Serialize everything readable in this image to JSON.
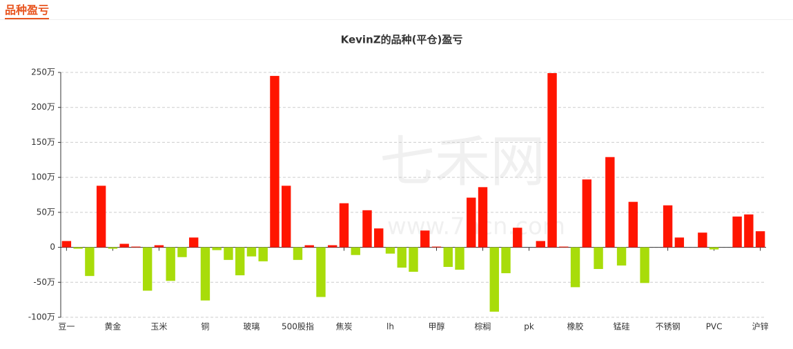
{
  "header": {
    "title": "品种盈亏"
  },
  "chart_data": {
    "type": "bar",
    "title": "KevinZ的品种(平仓)盈亏",
    "watermark": [
      "七禾网",
      "www.7hcn.com"
    ],
    "categories": [
      "豆一",
      null,
      null,
      null,
      "黄金",
      null,
      null,
      null,
      "玉米",
      null,
      null,
      null,
      "铜",
      null,
      null,
      null,
      "玻璃",
      null,
      null,
      null,
      "500股指",
      null,
      null,
      null,
      "焦炭",
      null,
      null,
      null,
      "lh",
      null,
      null,
      null,
      "甲醇",
      null,
      null,
      null,
      "棕榈",
      null,
      null,
      null,
      "pk",
      null,
      null,
      null,
      "橡胶",
      null,
      null,
      null,
      "锰硅",
      null,
      null,
      null,
      "不锈钢",
      null,
      null,
      null,
      "PVC",
      null,
      null,
      null,
      "沪锌"
    ],
    "values": [
      9,
      -2,
      -41,
      88,
      -2,
      5,
      1,
      -62,
      3,
      -48,
      -14,
      14,
      -76,
      -4,
      -18,
      -40,
      -13,
      -20,
      245,
      88,
      -18,
      3,
      -71,
      3,
      63,
      -11,
      53,
      27,
      -9,
      -29,
      -35,
      24,
      1,
      -28,
      -32,
      71,
      86,
      -92,
      -37,
      28,
      0,
      9,
      249,
      1,
      -57,
      97,
      -31,
      129,
      -26,
      65,
      -51,
      0,
      60,
      14,
      0,
      21,
      -3,
      0,
      44,
      47,
      23
    ],
    "positive_color": "#ff1500",
    "negative_color": "#a8dc0a",
    "ylim": [
      -100,
      250
    ],
    "yticks": [
      {
        "value": -100,
        "label": "-100万"
      },
      {
        "value": -50,
        "label": "-50万"
      },
      0,
      {
        "value": 50,
        "label": "50万"
      },
      {
        "value": 100,
        "label": "100万"
      },
      {
        "value": 150,
        "label": "150万"
      },
      {
        "value": 200,
        "label": "200万"
      },
      {
        "value": 250,
        "label": "250万"
      }
    ],
    "grid": true
  }
}
